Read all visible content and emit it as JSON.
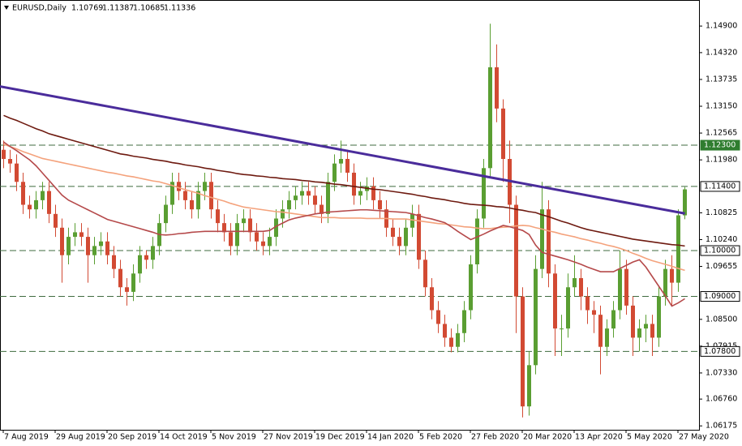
{
  "chart_data": {
    "type": "candlestick",
    "symbol": "EURUSD,Daily",
    "up_color": "#5a9e32",
    "down_color": "#d24a33",
    "level_color": "#3f6b3f",
    "categories": [
      "7 Aug 2019",
      null,
      null,
      null,
      null,
      null,
      null,
      null,
      "29 Aug 2019",
      null,
      null,
      null,
      null,
      null,
      null,
      null,
      "20 Sep 2019",
      null,
      null,
      null,
      null,
      null,
      null,
      null,
      "14 Oct 2019",
      null,
      null,
      null,
      null,
      null,
      null,
      null,
      "5 Nov 2019",
      null,
      null,
      null,
      null,
      null,
      null,
      null,
      "27 Nov 2019",
      null,
      null,
      null,
      null,
      null,
      null,
      null,
      "19 Dec 2019",
      null,
      null,
      null,
      null,
      null,
      null,
      null,
      "14 Jan 2020",
      null,
      null,
      null,
      null,
      null,
      null,
      null,
      "5 Feb 2020",
      null,
      null,
      null,
      null,
      null,
      null,
      null,
      "27 Feb 2020",
      null,
      null,
      null,
      null,
      null,
      null,
      null,
      "20 Mar 2020",
      null,
      null,
      null,
      null,
      null,
      null,
      null,
      "13 Apr 2020",
      null,
      null,
      null,
      null,
      null,
      null,
      null,
      "5 May 2020",
      null,
      null,
      null,
      null,
      null,
      null,
      null,
      "27 May 2020",
      null
    ],
    "open": [
      1.122,
      1.12,
      1.119,
      1.115,
      1.11,
      1.109,
      1.111,
      1.113,
      1.108,
      1.105,
      1.099,
      1.103,
      1.104,
      1.103,
      1.099,
      1.101,
      1.102,
      1.099,
      1.096,
      1.092,
      1.091,
      1.095,
      1.099,
      1.098,
      1.101,
      1.106,
      1.11,
      1.115,
      1.113,
      1.111,
      1.109,
      1.113,
      1.115,
      1.109,
      1.106,
      1.104,
      1.101,
      1.106,
      1.107,
      1.104,
      1.102,
      1.101,
      1.103,
      1.107,
      1.109,
      1.111,
      1.112,
      1.113,
      1.112,
      1.11,
      1.108,
      1.115,
      1.119,
      1.12,
      1.117,
      1.112,
      1.113,
      1.114,
      1.111,
      1.109,
      1.105,
      1.103,
      1.101,
      1.105,
      1.108,
      1.098,
      1.092,
      1.087,
      1.084,
      1.081,
      1.079,
      1.082,
      1.087,
      1.097,
      1.107,
      1.118,
      1.14,
      1.131,
      1.12,
      1.11,
      1.09,
      1.066,
      1.075,
      1.096,
      1.109,
      1.095,
      1.083,
      1.083,
      1.092,
      1.094,
      1.09,
      1.087,
      1.086,
      1.079,
      1.083,
      1.087,
      1.096,
      1.088,
      1.081,
      1.083,
      1.084,
      1.081,
      1.09,
      1.096,
      1.093,
      1.10769
    ],
    "high": [
      1.124,
      1.122,
      1.121,
      1.117,
      1.112,
      1.113,
      1.115,
      1.115,
      1.11,
      1.107,
      1.105,
      1.106,
      1.106,
      1.105,
      1.103,
      1.104,
      1.104,
      1.101,
      1.098,
      1.094,
      1.097,
      1.101,
      1.1,
      1.103,
      1.108,
      1.112,
      1.117,
      1.117,
      1.115,
      1.113,
      1.115,
      1.117,
      1.117,
      1.111,
      1.108,
      1.106,
      1.108,
      1.109,
      1.109,
      1.106,
      1.104,
      1.105,
      1.109,
      1.111,
      1.113,
      1.114,
      1.115,
      1.115,
      1.114,
      1.112,
      1.117,
      1.121,
      1.124,
      1.122,
      1.119,
      1.115,
      1.116,
      1.116,
      1.113,
      1.111,
      1.107,
      1.105,
      1.107,
      1.11,
      1.11,
      1.1,
      1.094,
      1.089,
      1.086,
      1.083,
      1.084,
      1.089,
      1.099,
      1.109,
      1.12,
      1.1495,
      1.145,
      1.133,
      1.124,
      1.112,
      1.092,
      1.078,
      1.099,
      1.115,
      1.111,
      1.097,
      1.086,
      1.095,
      1.099,
      1.096,
      1.092,
      1.089,
      1.088,
      1.085,
      1.089,
      1.1,
      1.098,
      1.09,
      1.085,
      1.086,
      1.086,
      1.092,
      1.098,
      1.099,
      1.109,
      1.11387
    ],
    "low": [
      1.118,
      1.117,
      1.113,
      1.108,
      1.107,
      1.107,
      1.109,
      1.106,
      1.103,
      1.093,
      1.097,
      1.101,
      1.101,
      1.093,
      1.097,
      1.099,
      1.097,
      1.094,
      1.09,
      1.088,
      1.089,
      1.093,
      1.096,
      1.096,
      1.099,
      1.104,
      1.108,
      1.111,
      1.109,
      1.107,
      1.107,
      1.111,
      1.107,
      1.104,
      1.102,
      1.099,
      1.099,
      1.104,
      1.102,
      1.1,
      1.099,
      1.099,
      1.101,
      1.105,
      1.107,
      1.109,
      1.11,
      1.11,
      1.108,
      1.106,
      1.106,
      1.113,
      1.117,
      1.115,
      1.11,
      1.11,
      1.111,
      1.109,
      1.107,
      1.103,
      1.101,
      1.099,
      1.099,
      1.103,
      1.096,
      1.09,
      1.085,
      1.082,
      1.079,
      1.0778,
      1.0778,
      1.08,
      1.085,
      1.095,
      1.105,
      1.116,
      1.128,
      1.115,
      1.106,
      1.082,
      1.0636,
      1.064,
      1.073,
      1.094,
      1.092,
      1.077,
      1.077,
      1.081,
      1.09,
      1.087,
      1.084,
      1.082,
      1.073,
      1.077,
      1.081,
      1.085,
      1.086,
      1.077,
      1.078,
      1.08,
      1.077,
      1.079,
      1.088,
      1.088,
      1.091,
      1.10685
    ],
    "close": [
      1.12,
      1.119,
      1.115,
      1.11,
      1.109,
      1.111,
      1.113,
      1.108,
      1.105,
      1.099,
      1.103,
      1.104,
      1.103,
      1.099,
      1.101,
      1.102,
      1.099,
      1.096,
      1.092,
      1.091,
      1.095,
      1.099,
      1.098,
      1.101,
      1.106,
      1.11,
      1.115,
      1.113,
      1.111,
      1.109,
      1.113,
      1.115,
      1.109,
      1.106,
      1.104,
      1.101,
      1.106,
      1.107,
      1.104,
      1.102,
      1.101,
      1.103,
      1.107,
      1.109,
      1.111,
      1.112,
      1.113,
      1.112,
      1.11,
      1.108,
      1.115,
      1.119,
      1.12,
      1.117,
      1.112,
      1.113,
      1.114,
      1.111,
      1.109,
      1.105,
      1.103,
      1.101,
      1.105,
      1.108,
      1.098,
      1.092,
      1.087,
      1.084,
      1.081,
      1.079,
      1.082,
      1.087,
      1.097,
      1.107,
      1.118,
      1.14,
      1.131,
      1.12,
      1.11,
      1.09,
      1.066,
      1.075,
      1.096,
      1.109,
      1.095,
      1.083,
      1.083,
      1.092,
      1.094,
      1.09,
      1.087,
      1.086,
      1.079,
      1.083,
      1.087,
      1.096,
      1.088,
      1.081,
      1.083,
      1.084,
      1.081,
      1.09,
      1.096,
      1.093,
      1.1077,
      1.11336
    ],
    "overlays": [
      {
        "color": "#f4a27c",
        "values": [
          1.1232,
          1.1227,
          1.1222,
          1.1216,
          1.1211,
          1.1206,
          1.1201,
          1.1198,
          1.1195,
          1.1192,
          1.1189,
          1.1186,
          1.1183,
          1.118,
          1.1177,
          1.1174,
          1.1171,
          1.1169,
          1.1166,
          1.1163,
          1.1161,
          1.1158,
          1.1155,
          1.1152,
          1.115,
          1.1146,
          1.1142,
          1.1137,
          1.1133,
          1.1129,
          1.1125,
          1.112,
          1.1116,
          1.1112,
          1.1108,
          1.1103,
          1.1099,
          1.1095,
          1.1093,
          1.1091,
          1.1089,
          1.1087,
          1.1085,
          1.1084,
          1.1082,
          1.108,
          1.1078,
          1.1076,
          1.1074,
          1.1072,
          1.1072,
          1.1072,
          1.1071,
          1.1071,
          1.1071,
          1.1071,
          1.107,
          1.107,
          1.107,
          1.107,
          1.1069,
          1.1069,
          1.1069,
          1.1067,
          1.1065,
          1.1063,
          1.1061,
          1.1059,
          1.1058,
          1.1056,
          1.1054,
          1.1052,
          1.1051,
          1.1049,
          1.1048,
          1.1048,
          1.105,
          1.1051,
          1.1052,
          1.1054,
          1.1055,
          1.1054,
          1.105,
          1.1047,
          1.1043,
          1.104,
          1.1036,
          1.1033,
          1.103,
          1.1026,
          1.1023,
          1.1019,
          1.1016,
          1.1012,
          1.1009,
          1.1005,
          1.1,
          1.0994,
          1.0989,
          1.0983,
          1.0978,
          1.0974,
          1.097,
          1.0966,
          1.0961,
          1.0957
        ]
      },
      {
        "color": "#b5494a",
        "values": [
          1.1237,
          1.1227,
          1.1218,
          1.1208,
          1.1198,
          1.1185,
          1.1169,
          1.1153,
          1.1137,
          1.1121,
          1.111,
          1.1103,
          1.1096,
          1.1089,
          1.1082,
          1.1075,
          1.1068,
          1.1064,
          1.106,
          1.1056,
          1.1052,
          1.1048,
          1.1044,
          1.104,
          1.1035,
          1.1034,
          1.1035,
          1.1037,
          1.1038,
          1.104,
          1.1041,
          1.1042,
          1.1042,
          1.1042,
          1.1042,
          1.1042,
          1.1042,
          1.1042,
          1.1042,
          1.1042,
          1.1042,
          1.1044,
          1.1053,
          1.106,
          1.1067,
          1.1071,
          1.1074,
          1.1077,
          1.108,
          1.1082,
          1.1084,
          1.1085,
          1.1086,
          1.1087,
          1.1088,
          1.1089,
          1.1089,
          1.1088,
          1.1087,
          1.1086,
          1.1085,
          1.1084,
          1.1083,
          1.108,
          1.1076,
          1.1072,
          1.1069,
          1.1065,
          1.1061,
          1.1052,
          1.1042,
          1.1033,
          1.1024,
          1.103,
          1.1036,
          1.1043,
          1.1049,
          1.1055,
          1.1052,
          1.1048,
          1.1044,
          1.1035,
          1.1012,
          1.0996,
          1.0992,
          1.0988,
          1.0984,
          1.098,
          1.0975,
          1.097,
          1.0964,
          1.0959,
          1.0954,
          1.0954,
          1.0954,
          1.0961,
          1.0968,
          1.0975,
          1.098,
          1.0964,
          1.0943,
          1.0922,
          1.0901,
          1.0879,
          1.0886,
          1.0895
        ]
      },
      {
        "color": "#6e1a10",
        "values": [
          1.1295,
          1.1289,
          1.1284,
          1.1278,
          1.1272,
          1.1266,
          1.1261,
          1.1255,
          1.1251,
          1.1247,
          1.1243,
          1.1239,
          1.1235,
          1.1231,
          1.1227,
          1.1223,
          1.1219,
          1.1215,
          1.1211,
          1.1209,
          1.1206,
          1.1204,
          1.1202,
          1.1199,
          1.1197,
          1.1195,
          1.1192,
          1.119,
          1.1187,
          1.1185,
          1.1183,
          1.118,
          1.1178,
          1.1175,
          1.1173,
          1.1171,
          1.1168,
          1.1166,
          1.1165,
          1.1163,
          1.1162,
          1.116,
          1.1159,
          1.1157,
          1.1156,
          1.1155,
          1.1153,
          1.1152,
          1.115,
          1.1149,
          1.1147,
          1.1145,
          1.1144,
          1.1142,
          1.114,
          1.1138,
          1.1136,
          1.1134,
          1.1133,
          1.1131,
          1.1129,
          1.1127,
          1.1125,
          1.1123,
          1.112,
          1.1118,
          1.1115,
          1.1113,
          1.1111,
          1.1108,
          1.1106,
          1.1103,
          1.1101,
          1.11,
          1.1099,
          1.1098,
          1.1096,
          1.1095,
          1.1093,
          1.109,
          1.1088,
          1.1085,
          1.1083,
          1.1078,
          1.1074,
          1.1069,
          1.1064,
          1.106,
          1.1055,
          1.105,
          1.1046,
          1.1043,
          1.104,
          1.1037,
          1.1034,
          1.1031,
          1.1028,
          1.1025,
          1.1023,
          1.1021,
          1.1019,
          1.1017,
          1.1015,
          1.1013,
          1.1012,
          1.101
        ]
      }
    ],
    "trendline": {
      "color": "#4a2c9b",
      "values": [
        1.1357,
        1.1081
      ]
    },
    "levels": [
      {
        "value": 1.123,
        "label": "1.12300",
        "highlight": true
      },
      {
        "value": 1.114,
        "label": "1.11400"
      },
      {
        "value": 1.1,
        "label": "1.10000"
      },
      {
        "value": 1.09,
        "label": "1.09000"
      },
      {
        "value": 1.078,
        "label": "1.07800"
      }
    ],
    "ylim": [
      1.0609,
      1.1538
    ],
    "yticks": [
      {
        "value": 1.149,
        "label": "1.14900"
      },
      {
        "value": 1.1432,
        "label": "1.14320"
      },
      {
        "value": 1.13735,
        "label": "1.13735"
      },
      {
        "value": 1.1315,
        "label": "1.13150"
      },
      {
        "value": 1.12565,
        "label": "1.12565"
      },
      {
        "value": 1.1198,
        "label": "1.11980"
      },
      {
        "value": 1.10825,
        "label": "1.10825"
      },
      {
        "value": 1.1024,
        "label": "1.10240"
      },
      {
        "value": 1.09655,
        "label": "1.09655"
      },
      {
        "value": 1.085,
        "label": "1.08500"
      },
      {
        "value": 1.07915,
        "label": "1.07915"
      },
      {
        "value": 1.0733,
        "label": "1.07330"
      },
      {
        "value": 1.0676,
        "label": "1.06760"
      },
      {
        "value": 1.06175,
        "label": "1.06175"
      }
    ],
    "grid": false
  }
}
